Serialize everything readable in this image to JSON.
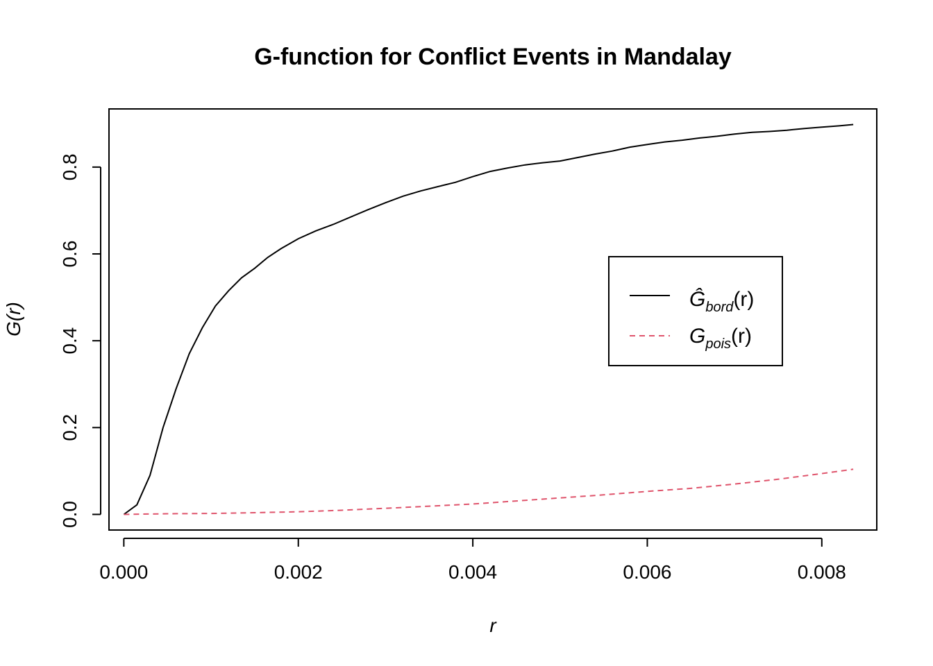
{
  "chart_data": {
    "type": "line",
    "title": "G-function for Conflict Events in Mandalay",
    "xlabel": "r",
    "ylabel": "G(r)",
    "xlim": [
      -0.00017,
      0.00863
    ],
    "ylim": [
      -0.036,
      0.934
    ],
    "xticks": [
      "0.000",
      "0.002",
      "0.004",
      "0.006",
      "0.008"
    ],
    "xtick_values": [
      0,
      0.002,
      0.004,
      0.006,
      0.008
    ],
    "yticks": [
      "0.0",
      "0.2",
      "0.4",
      "0.6",
      "0.8"
    ],
    "ytick_values": [
      0,
      0.2,
      0.4,
      0.6,
      0.8
    ],
    "grid": false,
    "legend_position": "right",
    "series": [
      {
        "legend_main": "Ĝ",
        "legend_sub": "bord",
        "legend_tail": "(r)",
        "color": "#000000",
        "dash": "solid",
        "x": [
          0,
          0.00015,
          0.0003,
          0.00045,
          0.0006,
          0.00075,
          0.0009,
          0.00105,
          0.0012,
          0.00135,
          0.0015,
          0.00165,
          0.0018,
          0.002,
          0.0022,
          0.0024,
          0.0026,
          0.0028,
          0.003,
          0.0032,
          0.0034,
          0.0036,
          0.0038,
          0.004,
          0.0042,
          0.0044,
          0.0046,
          0.0048,
          0.005,
          0.0052,
          0.0054,
          0.0056,
          0.0058,
          0.006,
          0.0062,
          0.0064,
          0.0066,
          0.0068,
          0.007,
          0.0072,
          0.0074,
          0.0076,
          0.0078,
          0.008,
          0.0082,
          0.00836
        ],
        "y": [
          0,
          0.022,
          0.09,
          0.2,
          0.29,
          0.37,
          0.43,
          0.48,
          0.515,
          0.545,
          0.567,
          0.592,
          0.612,
          0.635,
          0.653,
          0.668,
          0.685,
          0.702,
          0.718,
          0.733,
          0.745,
          0.755,
          0.765,
          0.778,
          0.79,
          0.798,
          0.805,
          0.81,
          0.814,
          0.822,
          0.83,
          0.837,
          0.846,
          0.852,
          0.858,
          0.862,
          0.867,
          0.871,
          0.876,
          0.88,
          0.882,
          0.885,
          0.889,
          0.892,
          0.895,
          0.898
        ]
      },
      {
        "legend_main": "G",
        "legend_sub": "pois",
        "legend_tail": "(r)",
        "color": "#DF536B",
        "dash": "dashed",
        "x": [
          0,
          0.0005,
          0.001,
          0.0015,
          0.002,
          0.0025,
          0.003,
          0.0035,
          0.004,
          0.0045,
          0.005,
          0.0055,
          0.006,
          0.0065,
          0.007,
          0.0075,
          0.008,
          0.00836
        ],
        "y": [
          0,
          0.0015,
          0.0022,
          0.004,
          0.006,
          0.0095,
          0.014,
          0.019,
          0.024,
          0.031,
          0.038,
          0.045,
          0.053,
          0.06,
          0.07,
          0.081,
          0.094,
          0.104
        ]
      }
    ]
  }
}
